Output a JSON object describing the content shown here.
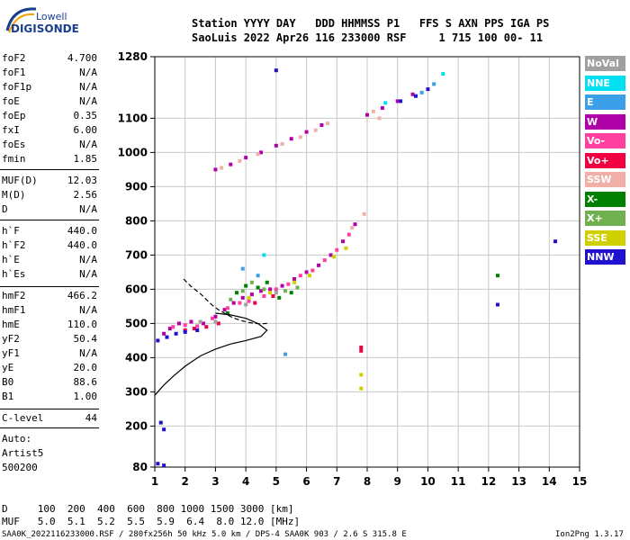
{
  "logo": {
    "top": "Lowell",
    "main": "DIGISONDE"
  },
  "header": {
    "line1": "Station YYYY DAY   DDD HHMMSS P1   FFS S AXN PPS IGA PS",
    "line2": "SaoLuis 2022 Apr26 116 233000 RSF     1 715 100 00- 11"
  },
  "params": [
    {
      "label": "foF2",
      "value": "4.700"
    },
    {
      "label": "foF1",
      "value": "N/A"
    },
    {
      "label": "foF1p",
      "value": "N/A"
    },
    {
      "label": "foE",
      "value": "N/A"
    },
    {
      "label": "foEp",
      "value": "0.35"
    },
    {
      "label": "fxI",
      "value": "6.00"
    },
    {
      "label": "foEs",
      "value": "N/A"
    },
    {
      "label": "fmin",
      "value": "1.85"
    },
    {
      "label": "MUF(D)",
      "value": "12.03"
    },
    {
      "label": "M(D)",
      "value": "2.56"
    },
    {
      "label": "D",
      "value": "N/A"
    },
    {
      "label": "h`F",
      "value": "440.0"
    },
    {
      "label": "h`F2",
      "value": "440.0"
    },
    {
      "label": "h`E",
      "value": "N/A"
    },
    {
      "label": "h`Es",
      "value": "N/A"
    },
    {
      "label": "hmF2",
      "value": "466.2"
    },
    {
      "label": "hmF1",
      "value": "N/A"
    },
    {
      "label": "hmE",
      "value": "110.0"
    },
    {
      "label": "yF2",
      "value": "50.4"
    },
    {
      "label": "yF1",
      "value": "N/A"
    },
    {
      "label": "yE",
      "value": "20.0"
    },
    {
      "label": "B0",
      "value": "88.6"
    },
    {
      "label": "B1",
      "value": "1.00"
    },
    {
      "label": "C-level",
      "value": "44"
    }
  ],
  "auto": {
    "line1": "Auto:",
    "line2": "Artist5",
    "line3": "500200"
  },
  "legend": [
    {
      "label": "NoVal",
      "color": "#a0a0a0"
    },
    {
      "label": "NNE",
      "color": "#00e0f0"
    },
    {
      "label": "E",
      "color": "#3ba0e8"
    },
    {
      "label": "W",
      "color": "#b000a8"
    },
    {
      "label": "Vo-",
      "color": "#ff40a0"
    },
    {
      "label": "Vo+",
      "color": "#f00040"
    },
    {
      "label": "SSW",
      "color": "#f0b0a8"
    },
    {
      "label": "X-",
      "color": "#008000"
    },
    {
      "label": "X+",
      "color": "#70b050"
    },
    {
      "label": "SSE",
      "color": "#d0d000"
    },
    {
      "label": "NNW",
      "color": "#2010d0"
    }
  ],
  "footer": {
    "line1": "D     100  200  400  600  800 1000 1500 3000 [km]",
    "line2": "MUF   5.0  5.1  5.2  5.5  5.9  6.4  8.0 12.0 [MHz]",
    "line3": "SAA0K_2022116233000.RSF / 280fx256h 50 kHz 5.0 km / DPS-4 SAA0K 903 / 2.6 S 315.8 E",
    "version": "Ion2Png 1.3.17"
  },
  "chart_data": {
    "type": "scatter",
    "xlim": [
      1,
      15
    ],
    "ylim": [
      80,
      1280
    ],
    "xticks": [
      "1",
      "2",
      "3",
      "4",
      "5",
      "6",
      "7",
      "8",
      "9",
      "10",
      "11",
      "12",
      "13",
      "14",
      "15"
    ],
    "yticks": [
      "80",
      "200",
      "300",
      "400",
      "500",
      "600",
      "700",
      "800",
      "900",
      "1000",
      "1100",
      "1280"
    ],
    "series": [
      {
        "legend": "W",
        "points": [
          [
            1.3,
            470
          ],
          [
            1.5,
            485
          ],
          [
            1.8,
            500
          ],
          [
            2.2,
            505
          ],
          [
            2.6,
            500
          ],
          [
            3.0,
            520
          ],
          [
            3.3,
            540
          ],
          [
            3.6,
            560
          ],
          [
            3.9,
            575
          ],
          [
            4.2,
            585
          ],
          [
            4.5,
            595
          ],
          [
            4.8,
            600
          ],
          [
            5.2,
            610
          ],
          [
            5.6,
            630
          ],
          [
            6.0,
            650
          ],
          [
            6.4,
            670
          ],
          [
            6.8,
            700
          ],
          [
            7.2,
            740
          ],
          [
            7.6,
            790
          ],
          [
            3.0,
            950
          ],
          [
            3.5,
            965
          ],
          [
            4.0,
            985
          ],
          [
            4.5,
            1000
          ],
          [
            5.0,
            1020
          ],
          [
            5.5,
            1040
          ],
          [
            6.0,
            1060
          ],
          [
            6.5,
            1080
          ],
          [
            8.0,
            1110
          ],
          [
            8.5,
            1130
          ],
          [
            9.0,
            1150
          ],
          [
            9.5,
            1170
          ]
        ]
      },
      {
        "legend": "Vo-",
        "points": [
          [
            1.6,
            490
          ],
          [
            2.0,
            495
          ],
          [
            2.4,
            492
          ],
          [
            2.9,
            515
          ],
          [
            3.4,
            545
          ],
          [
            3.8,
            560
          ],
          [
            4.1,
            565
          ],
          [
            4.6,
            580
          ],
          [
            5.0,
            600
          ],
          [
            5.4,
            615
          ],
          [
            5.8,
            640
          ],
          [
            6.2,
            655
          ],
          [
            6.6,
            685
          ],
          [
            7.0,
            715
          ],
          [
            7.4,
            760
          ]
        ]
      },
      {
        "legend": "Vo+",
        "points": [
          [
            2.0,
            480
          ],
          [
            2.3,
            485
          ],
          [
            2.7,
            490
          ],
          [
            3.1,
            500
          ],
          [
            4.3,
            560
          ],
          [
            4.9,
            580
          ],
          [
            7.8,
            430
          ],
          [
            7.8,
            420
          ]
        ]
      },
      {
        "legend": "SSW",
        "points": [
          [
            3.2,
            955
          ],
          [
            3.8,
            975
          ],
          [
            4.4,
            995
          ],
          [
            5.2,
            1025
          ],
          [
            5.8,
            1045
          ],
          [
            6.3,
            1065
          ],
          [
            6.7,
            1085
          ],
          [
            7.5,
            780
          ],
          [
            7.9,
            820
          ],
          [
            8.2,
            1120
          ],
          [
            8.4,
            1100
          ]
        ]
      },
      {
        "legend": "X-",
        "points": [
          [
            3.7,
            590
          ],
          [
            4.0,
            610
          ],
          [
            4.4,
            605
          ],
          [
            4.7,
            620
          ],
          [
            5.1,
            575
          ],
          [
            5.5,
            590
          ],
          [
            3.4,
            530
          ],
          [
            12.3,
            640
          ]
        ]
      },
      {
        "legend": "X+",
        "points": [
          [
            3.5,
            570
          ],
          [
            3.9,
            595
          ],
          [
            4.2,
            620
          ],
          [
            4.6,
            600
          ],
          [
            5.3,
            595
          ],
          [
            5.7,
            605
          ]
        ]
      },
      {
        "legend": "SSE",
        "points": [
          [
            4.1,
            575
          ],
          [
            4.8,
            590
          ],
          [
            5.6,
            620
          ],
          [
            6.1,
            640
          ],
          [
            6.9,
            695
          ],
          [
            7.3,
            720
          ],
          [
            7.8,
            350
          ],
          [
            7.8,
            310
          ]
        ]
      },
      {
        "legend": "NNW",
        "points": [
          [
            1.1,
            450
          ],
          [
            1.4,
            460
          ],
          [
            1.7,
            470
          ],
          [
            2.0,
            475
          ],
          [
            2.4,
            480
          ],
          [
            1.2,
            210
          ],
          [
            1.3,
            190
          ],
          [
            1.1,
            90
          ],
          [
            1.3,
            85
          ],
          [
            5.0,
            1240
          ],
          [
            9.1,
            1150
          ],
          [
            9.6,
            1165
          ],
          [
            10.0,
            1185
          ],
          [
            14.2,
            740
          ],
          [
            12.3,
            555
          ]
        ]
      },
      {
        "legend": "E",
        "points": [
          [
            3.9,
            660
          ],
          [
            4.4,
            640
          ],
          [
            5.3,
            410
          ],
          [
            9.8,
            1175
          ],
          [
            10.2,
            1200
          ]
        ]
      },
      {
        "legend": "NNE",
        "points": [
          [
            8.6,
            1145
          ],
          [
            10.5,
            1230
          ],
          [
            4.6,
            700
          ]
        ]
      },
      {
        "legend": "NoVal",
        "points": [
          [
            2.5,
            505
          ],
          [
            3.0,
            505
          ],
          [
            4.0,
            555
          ],
          [
            5.0,
            590
          ]
        ]
      }
    ],
    "trace_virtual_height": [
      [
        1.95,
        630
      ],
      [
        2.2,
        608
      ],
      [
        2.5,
        587
      ],
      [
        2.7,
        570
      ],
      [
        2.9,
        553
      ],
      [
        3.1,
        540
      ],
      [
        3.3,
        530
      ],
      [
        3.5,
        520
      ],
      [
        3.7,
        513
      ],
      [
        3.9,
        507
      ],
      [
        4.1,
        503
      ],
      [
        4.3,
        500
      ],
      [
        4.5,
        499
      ],
      [
        4.7,
        500
      ]
    ],
    "profile_true_height": [
      [
        1.0,
        290
      ],
      [
        1.3,
        320
      ],
      [
        1.6,
        345
      ],
      [
        2.0,
        375
      ],
      [
        2.5,
        405
      ],
      [
        3.0,
        425
      ],
      [
        3.5,
        440
      ],
      [
        4.0,
        450
      ],
      [
        4.5,
        462
      ],
      [
        4.7,
        480
      ],
      [
        4.4,
        500
      ],
      [
        4.0,
        515
      ],
      [
        3.5,
        525
      ],
      [
        3.0,
        530
      ]
    ]
  }
}
